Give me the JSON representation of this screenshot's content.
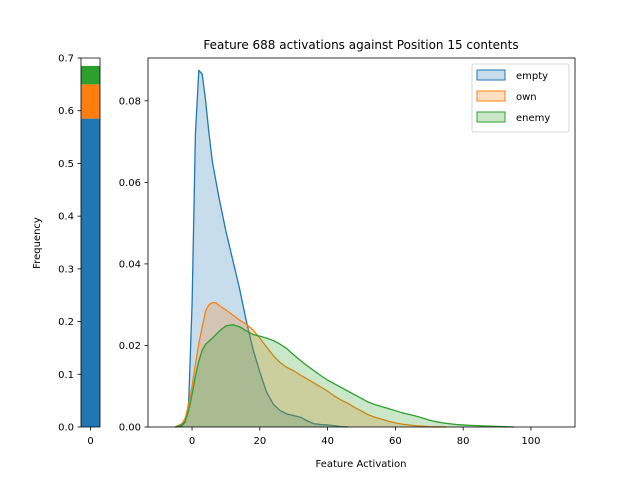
{
  "chart_data": [
    {
      "type": "bar",
      "stacked": true,
      "categories": [
        "0"
      ],
      "ylabel": "Frequency",
      "ylim": [
        0,
        0.7
      ],
      "yticks": [
        "0.0",
        "0.1",
        "0.2",
        "0.3",
        "0.4",
        "0.5",
        "0.6",
        "0.7"
      ],
      "series": [
        {
          "color": "#1f77b4",
          "values": [
            0.585
          ]
        },
        {
          "color": "#ff7f0e",
          "values": [
            0.065
          ]
        },
        {
          "color": "#2ca02c",
          "values": [
            0.035
          ]
        }
      ]
    },
    {
      "type": "area",
      "title": "Feature 688 activations against Position 15 contents",
      "xlabel": "Feature Activation",
      "ylabel": "",
      "xlim": [
        -13,
        113
      ],
      "ylim": [
        0,
        0.0905
      ],
      "xticks": [
        "0",
        "20",
        "40",
        "60",
        "80",
        "100"
      ],
      "yticks": [
        "0.00",
        "0.02",
        "0.04",
        "0.06",
        "0.08"
      ],
      "legend": "top-right",
      "series": [
        {
          "name": "empty",
          "color": "#1f77b4",
          "x": [
            -5,
            -3,
            -2,
            -1,
            0,
            1,
            2,
            3,
            4,
            5,
            6,
            8,
            10,
            12,
            14,
            16,
            18,
            20,
            22,
            24,
            26,
            28,
            30,
            32,
            34,
            36,
            38,
            40,
            42,
            44,
            46
          ],
          "y": [
            0,
            0.0003,
            0.0012,
            0.006,
            0.03,
            0.072,
            0.0875,
            0.0865,
            0.08,
            0.072,
            0.065,
            0.056,
            0.048,
            0.041,
            0.034,
            0.026,
            0.019,
            0.0135,
            0.0085,
            0.0056,
            0.004,
            0.0032,
            0.0028,
            0.0024,
            0.0015,
            0.0008,
            0.0006,
            0.0005,
            0.0003,
            0.0001,
            0
          ]
        },
        {
          "name": "own",
          "color": "#ff7f0e",
          "x": [
            -5,
            -3,
            -2,
            -1,
            0,
            1,
            2,
            3,
            4,
            5,
            6,
            7,
            8,
            10,
            12,
            14,
            16,
            18,
            20,
            22,
            24,
            26,
            28,
            30,
            32,
            35,
            38,
            40,
            42,
            44,
            46,
            48,
            50,
            52,
            54,
            56,
            58,
            60,
            62,
            64,
            66,
            68,
            70,
            72,
            75
          ],
          "y": [
            0,
            0.0008,
            0.0022,
            0.0055,
            0.01,
            0.0155,
            0.0205,
            0.0245,
            0.0285,
            0.03,
            0.0305,
            0.0305,
            0.0298,
            0.0287,
            0.0275,
            0.0262,
            0.0252,
            0.0238,
            0.0218,
            0.0196,
            0.0175,
            0.0158,
            0.0146,
            0.0138,
            0.0127,
            0.0113,
            0.0098,
            0.0088,
            0.0076,
            0.0066,
            0.0058,
            0.0048,
            0.0039,
            0.003,
            0.0024,
            0.0019,
            0.0014,
            0.001,
            0.0007,
            0.0005,
            0.0003,
            0.0002,
            0.0001,
            5e-05,
            0
          ]
        },
        {
          "name": "enemy",
          "color": "#2ca02c",
          "x": [
            -5,
            -3,
            -2,
            -1,
            0,
            1,
            2,
            3,
            4,
            6,
            8,
            10,
            12,
            14,
            16,
            18,
            20,
            22,
            24,
            26,
            28,
            30,
            32,
            34,
            36,
            38,
            40,
            42,
            44,
            46,
            48,
            50,
            52,
            54,
            56,
            58,
            60,
            62,
            64,
            66,
            68,
            70,
            72,
            74,
            76,
            78,
            80,
            82,
            85,
            88,
            92,
            95
          ],
          "y": [
            0,
            0.0005,
            0.0015,
            0.004,
            0.008,
            0.0125,
            0.0162,
            0.0188,
            0.0203,
            0.0218,
            0.0235,
            0.0248,
            0.0251,
            0.0246,
            0.0236,
            0.0227,
            0.0223,
            0.0218,
            0.0212,
            0.0203,
            0.0192,
            0.0177,
            0.0163,
            0.015,
            0.0138,
            0.0126,
            0.0115,
            0.0106,
            0.0097,
            0.0088,
            0.0079,
            0.007,
            0.0061,
            0.0055,
            0.005,
            0.0045,
            0.004,
            0.0035,
            0.0031,
            0.0027,
            0.0022,
            0.0017,
            0.0013,
            0.001,
            0.0008,
            0.0006,
            0.0005,
            0.0004,
            0.0003,
            0.0002,
            0.0001,
            0
          ]
        }
      ]
    }
  ]
}
